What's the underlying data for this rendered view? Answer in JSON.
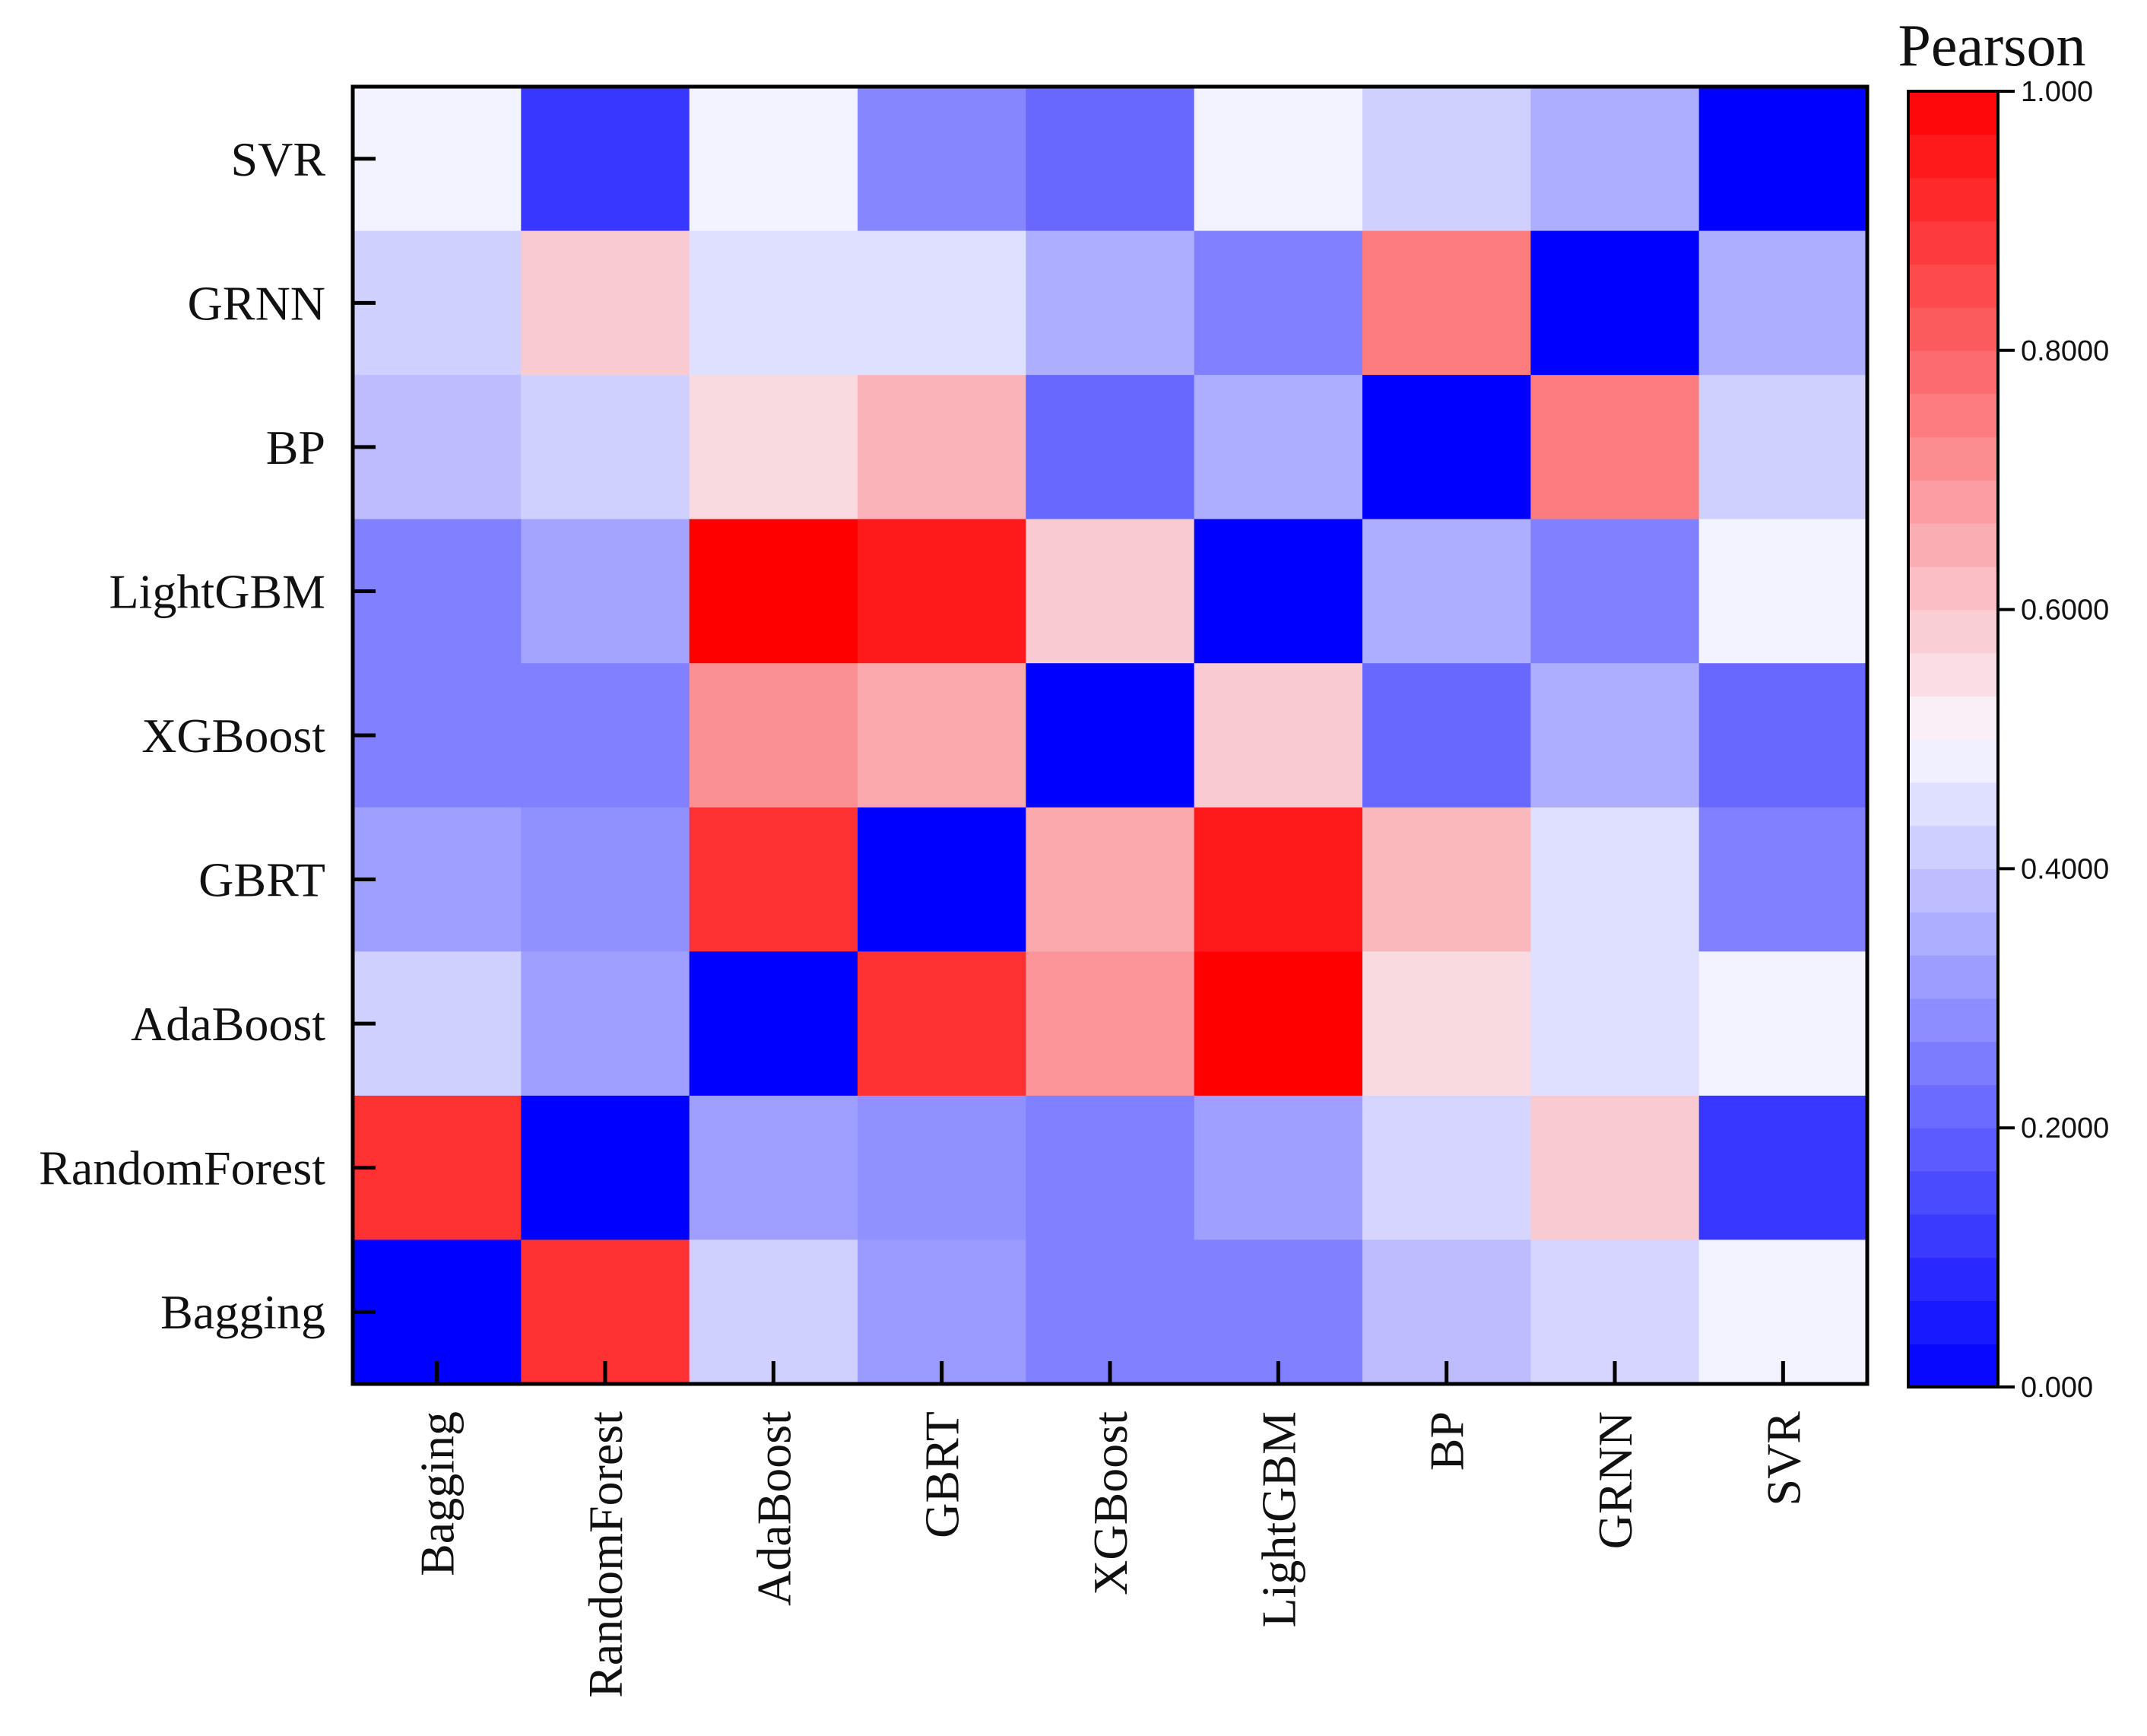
{
  "chart_data": {
    "type": "heatmap",
    "title": "",
    "colorbar_title": "Pearson",
    "colorbar_ticks": [
      "0.000",
      "0.2000",
      "0.4000",
      "0.6000",
      "0.8000",
      "1.000"
    ],
    "colorbar_range": [
      0,
      1
    ],
    "x_labels": [
      "Bagging",
      "RandomForest",
      "AdaBoost",
      "GBRT",
      "XGBoost",
      "LightGBM",
      "BP",
      "GRNN",
      "SVR"
    ],
    "y_labels": [
      "SVR",
      "GRNN",
      "BP",
      "LightGBM",
      "XGBoost",
      "GBRT",
      "AdaBoost",
      "RandomForest",
      "Bagging"
    ],
    "values": [
      [
        0.49,
        0.11,
        0.49,
        0.27,
        0.21,
        0.49,
        0.42,
        0.35,
        0.0
      ],
      [
        0.42,
        0.59,
        0.45,
        0.45,
        0.35,
        0.26,
        0.75,
        0.0,
        0.35
      ],
      [
        0.38,
        0.42,
        0.56,
        0.64,
        0.21,
        0.35,
        0.0,
        0.75,
        0.42
      ],
      [
        0.26,
        0.33,
        1.0,
        0.95,
        0.59,
        0.0,
        0.35,
        0.26,
        0.49
      ],
      [
        0.26,
        0.26,
        0.71,
        0.66,
        0.0,
        0.59,
        0.21,
        0.35,
        0.21
      ],
      [
        0.32,
        0.29,
        0.9,
        0.0,
        0.66,
        0.95,
        0.63,
        0.45,
        0.26
      ],
      [
        0.42,
        0.32,
        0.0,
        0.9,
        0.7,
        1.0,
        0.56,
        0.45,
        0.49
      ],
      [
        0.9,
        0.0,
        0.32,
        0.29,
        0.26,
        0.32,
        0.43,
        0.59,
        0.11
      ],
      [
        0.0,
        0.9,
        0.42,
        0.31,
        0.26,
        0.26,
        0.38,
        0.43,
        0.49
      ]
    ],
    "colormap": {
      "low": "#0000ff",
      "mid": "#f8f8ff",
      "high": "#ff0000"
    }
  }
}
